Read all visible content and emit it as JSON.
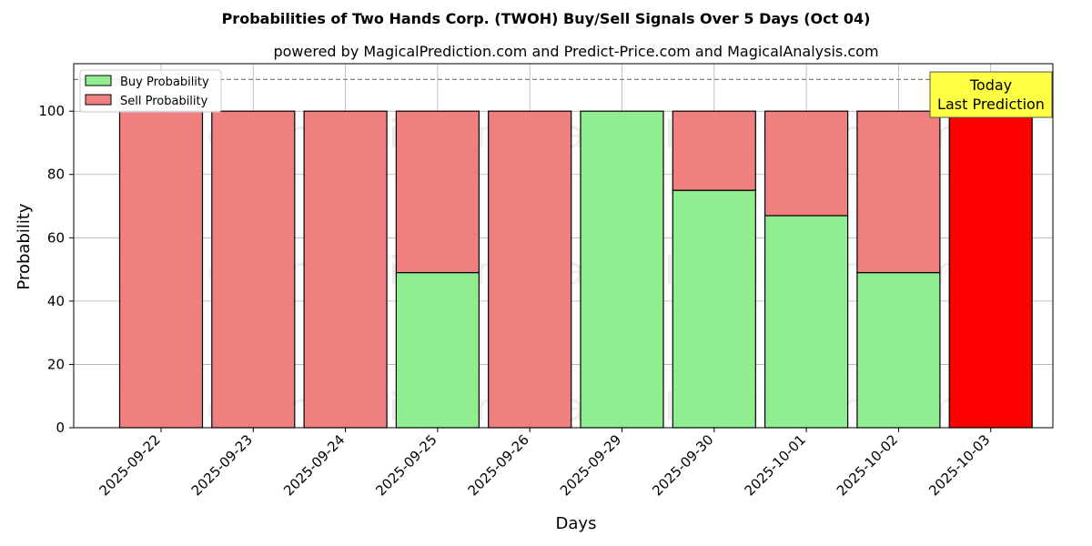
{
  "chart_data": {
    "type": "bar",
    "title": "Probabilities of Two Hands Corp. (TWOH) Buy/Sell Signals Over 5 Days (Oct 04)",
    "subtitle": "powered by MagicalPrediction.com and Predict-Price.com and MagicalAnalysis.com",
    "xlabel": "Days",
    "ylabel": "Probability",
    "ylim": [
      0,
      115
    ],
    "yticks": [
      0,
      20,
      40,
      60,
      80,
      100
    ],
    "grid": true,
    "legend_position": "top-left",
    "reference_line": 110,
    "categories": [
      "2025-09-22",
      "2025-09-23",
      "2025-09-24",
      "2025-09-25",
      "2025-09-26",
      "2025-09-29",
      "2025-09-30",
      "2025-10-01",
      "2025-10-02",
      "2025-10-03"
    ],
    "series": [
      {
        "name": "Buy Probability",
        "color": "#90ee90",
        "values": [
          0,
          0,
          0,
          49,
          0,
          100,
          75,
          67,
          49,
          0
        ]
      },
      {
        "name": "Sell Probability",
        "color": "#f08080",
        "values": [
          100,
          100,
          100,
          51,
          100,
          0,
          25,
          33,
          51,
          100
        ]
      }
    ],
    "highlight": {
      "index": 9,
      "color": "#ff0000"
    },
    "annotation": {
      "line1": "Today",
      "line2": "Last Prediction",
      "background": "#ffff44"
    },
    "watermarks": [
      "MagicalAnalysis.com",
      "MagicalPrediction.com"
    ]
  }
}
